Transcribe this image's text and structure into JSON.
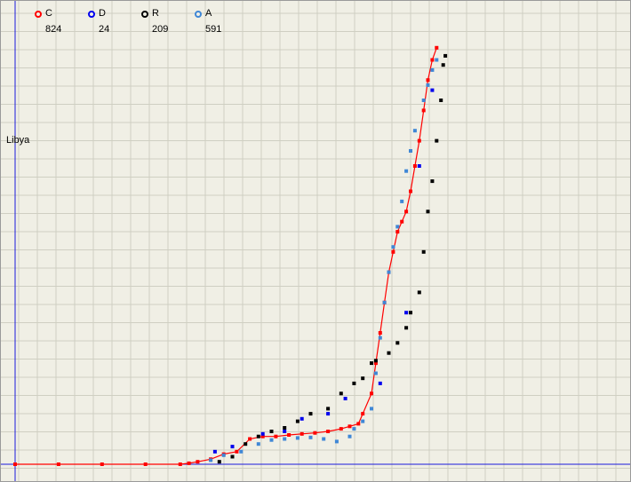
{
  "country_label": "Libya",
  "legend": [
    {
      "key": "C",
      "count": "824",
      "color": "#ff0000"
    },
    {
      "key": "D",
      "count": "24",
      "color": "#0000ee"
    },
    {
      "key": "R",
      "count": "209",
      "color": "#000000"
    },
    {
      "key": "A",
      "count": "591",
      "color": "#3f87d6"
    }
  ],
  "chart_data": {
    "type": "scatter",
    "title": "",
    "xlabel": "",
    "ylabel": "",
    "grid": true,
    "xlim": [
      0,
      100
    ],
    "ylim": [
      0,
      850
    ],
    "legend_position": "top-left",
    "series": [
      {
        "name": "C",
        "color": "#ff0000",
        "connected": true,
        "points": [
          [
            0,
            0
          ],
          [
            10,
            0
          ],
          [
            20,
            0
          ],
          [
            30,
            0
          ],
          [
            38,
            0
          ],
          [
            40,
            2
          ],
          [
            42,
            5
          ],
          [
            45,
            10
          ],
          [
            48,
            20
          ],
          [
            51,
            25
          ],
          [
            54,
            50
          ],
          [
            57,
            55
          ],
          [
            60,
            55
          ],
          [
            63,
            58
          ],
          [
            66,
            60
          ],
          [
            69,
            62
          ],
          [
            72,
            65
          ],
          [
            75,
            70
          ],
          [
            77,
            75
          ],
          [
            79,
            80
          ],
          [
            80,
            100
          ],
          [
            82,
            140
          ],
          [
            83,
            200
          ],
          [
            84,
            260
          ],
          [
            85,
            320
          ],
          [
            86,
            380
          ],
          [
            87,
            420
          ],
          [
            88,
            460
          ],
          [
            89,
            480
          ],
          [
            90,
            500
          ],
          [
            91,
            540
          ],
          [
            92,
            590
          ],
          [
            93,
            640
          ],
          [
            94,
            700
          ],
          [
            95,
            760
          ],
          [
            96,
            800
          ],
          [
            97,
            824
          ]
        ]
      },
      {
        "name": "D",
        "color": "#0000ee",
        "connected": false,
        "points": [
          [
            46,
            25
          ],
          [
            50,
            35
          ],
          [
            57,
            60
          ],
          [
            62,
            65
          ],
          [
            66,
            90
          ],
          [
            72,
            100
          ],
          [
            76,
            130
          ],
          [
            84,
            160
          ],
          [
            90,
            300
          ],
          [
            93,
            590
          ],
          [
            96,
            740
          ]
        ]
      },
      {
        "name": "R",
        "color": "#000000",
        "connected": false,
        "points": [
          [
            47,
            5
          ],
          [
            50,
            15
          ],
          [
            53,
            40
          ],
          [
            56,
            55
          ],
          [
            59,
            65
          ],
          [
            62,
            72
          ],
          [
            65,
            85
          ],
          [
            68,
            100
          ],
          [
            72,
            110
          ],
          [
            75,
            140
          ],
          [
            78,
            160
          ],
          [
            80,
            170
          ],
          [
            82,
            200
          ],
          [
            83,
            205
          ],
          [
            86,
            220
          ],
          [
            88,
            240
          ],
          [
            90,
            270
          ],
          [
            91,
            300
          ],
          [
            93,
            340
          ],
          [
            94,
            420
          ],
          [
            95,
            500
          ],
          [
            96,
            560
          ],
          [
            97,
            640
          ],
          [
            98,
            720
          ],
          [
            98.5,
            790
          ],
          [
            99,
            808
          ]
        ]
      },
      {
        "name": "A",
        "color": "#3f87d6",
        "connected": false,
        "points": [
          [
            45,
            8
          ],
          [
            48,
            18
          ],
          [
            52,
            25
          ],
          [
            56,
            40
          ],
          [
            59,
            48
          ],
          [
            62,
            50
          ],
          [
            65,
            52
          ],
          [
            68,
            53
          ],
          [
            71,
            50
          ],
          [
            74,
            45
          ],
          [
            77,
            55
          ],
          [
            78,
            70
          ],
          [
            80,
            85
          ],
          [
            82,
            110
          ],
          [
            83,
            180
          ],
          [
            84,
            250
          ],
          [
            85,
            320
          ],
          [
            86,
            380
          ],
          [
            87,
            430
          ],
          [
            88,
            470
          ],
          [
            89,
            520
          ],
          [
            90,
            580
          ],
          [
            91,
            620
          ],
          [
            92,
            660
          ],
          [
            94,
            720
          ],
          [
            95,
            750
          ],
          [
            96,
            780
          ],
          [
            97,
            800
          ]
        ]
      }
    ]
  }
}
